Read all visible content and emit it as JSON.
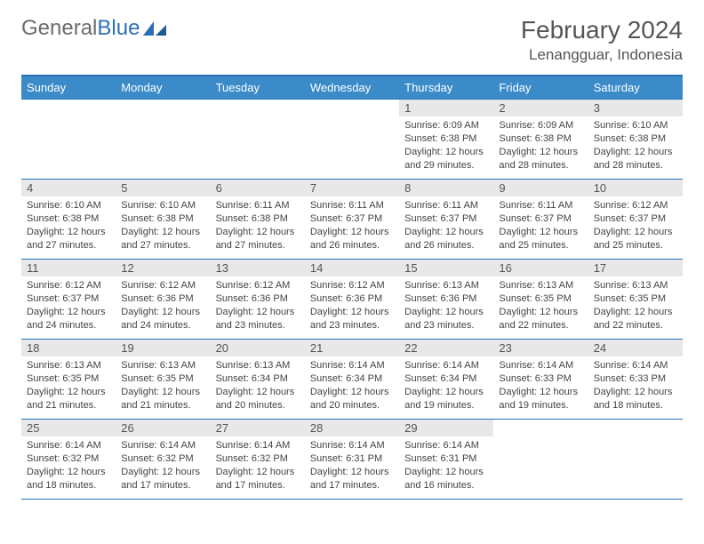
{
  "logo": {
    "text1": "General",
    "text2": "Blue"
  },
  "title": "February 2024",
  "location": "Lenangguar, Indonesia",
  "colors": {
    "header_bg": "#3b8bc9",
    "header_border": "#2a6fb5",
    "daynum_bg": "#e8e8e8",
    "text": "#444444",
    "logo_gray": "#6b6b6b",
    "logo_blue": "#2a6fb5"
  },
  "dayNames": [
    "Sunday",
    "Monday",
    "Tuesday",
    "Wednesday",
    "Thursday",
    "Friday",
    "Saturday"
  ],
  "weeks": [
    [
      null,
      null,
      null,
      null,
      {
        "n": "1",
        "sr": "6:09 AM",
        "ss": "6:38 PM",
        "dl": "12 hours and 29 minutes."
      },
      {
        "n": "2",
        "sr": "6:09 AM",
        "ss": "6:38 PM",
        "dl": "12 hours and 28 minutes."
      },
      {
        "n": "3",
        "sr": "6:10 AM",
        "ss": "6:38 PM",
        "dl": "12 hours and 28 minutes."
      }
    ],
    [
      {
        "n": "4",
        "sr": "6:10 AM",
        "ss": "6:38 PM",
        "dl": "12 hours and 27 minutes."
      },
      {
        "n": "5",
        "sr": "6:10 AM",
        "ss": "6:38 PM",
        "dl": "12 hours and 27 minutes."
      },
      {
        "n": "6",
        "sr": "6:11 AM",
        "ss": "6:38 PM",
        "dl": "12 hours and 27 minutes."
      },
      {
        "n": "7",
        "sr": "6:11 AM",
        "ss": "6:37 PM",
        "dl": "12 hours and 26 minutes."
      },
      {
        "n": "8",
        "sr": "6:11 AM",
        "ss": "6:37 PM",
        "dl": "12 hours and 26 minutes."
      },
      {
        "n": "9",
        "sr": "6:11 AM",
        "ss": "6:37 PM",
        "dl": "12 hours and 25 minutes."
      },
      {
        "n": "10",
        "sr": "6:12 AM",
        "ss": "6:37 PM",
        "dl": "12 hours and 25 minutes."
      }
    ],
    [
      {
        "n": "11",
        "sr": "6:12 AM",
        "ss": "6:37 PM",
        "dl": "12 hours and 24 minutes."
      },
      {
        "n": "12",
        "sr": "6:12 AM",
        "ss": "6:36 PM",
        "dl": "12 hours and 24 minutes."
      },
      {
        "n": "13",
        "sr": "6:12 AM",
        "ss": "6:36 PM",
        "dl": "12 hours and 23 minutes."
      },
      {
        "n": "14",
        "sr": "6:12 AM",
        "ss": "6:36 PM",
        "dl": "12 hours and 23 minutes."
      },
      {
        "n": "15",
        "sr": "6:13 AM",
        "ss": "6:36 PM",
        "dl": "12 hours and 23 minutes."
      },
      {
        "n": "16",
        "sr": "6:13 AM",
        "ss": "6:35 PM",
        "dl": "12 hours and 22 minutes."
      },
      {
        "n": "17",
        "sr": "6:13 AM",
        "ss": "6:35 PM",
        "dl": "12 hours and 22 minutes."
      }
    ],
    [
      {
        "n": "18",
        "sr": "6:13 AM",
        "ss": "6:35 PM",
        "dl": "12 hours and 21 minutes."
      },
      {
        "n": "19",
        "sr": "6:13 AM",
        "ss": "6:35 PM",
        "dl": "12 hours and 21 minutes."
      },
      {
        "n": "20",
        "sr": "6:13 AM",
        "ss": "6:34 PM",
        "dl": "12 hours and 20 minutes."
      },
      {
        "n": "21",
        "sr": "6:14 AM",
        "ss": "6:34 PM",
        "dl": "12 hours and 20 minutes."
      },
      {
        "n": "22",
        "sr": "6:14 AM",
        "ss": "6:34 PM",
        "dl": "12 hours and 19 minutes."
      },
      {
        "n": "23",
        "sr": "6:14 AM",
        "ss": "6:33 PM",
        "dl": "12 hours and 19 minutes."
      },
      {
        "n": "24",
        "sr": "6:14 AM",
        "ss": "6:33 PM",
        "dl": "12 hours and 18 minutes."
      }
    ],
    [
      {
        "n": "25",
        "sr": "6:14 AM",
        "ss": "6:32 PM",
        "dl": "12 hours and 18 minutes."
      },
      {
        "n": "26",
        "sr": "6:14 AM",
        "ss": "6:32 PM",
        "dl": "12 hours and 17 minutes."
      },
      {
        "n": "27",
        "sr": "6:14 AM",
        "ss": "6:32 PM",
        "dl": "12 hours and 17 minutes."
      },
      {
        "n": "28",
        "sr": "6:14 AM",
        "ss": "6:31 PM",
        "dl": "12 hours and 17 minutes."
      },
      {
        "n": "29",
        "sr": "6:14 AM",
        "ss": "6:31 PM",
        "dl": "12 hours and 16 minutes."
      },
      null,
      null
    ]
  ],
  "labels": {
    "sunrise": "Sunrise:",
    "sunset": "Sunset:",
    "daylight": "Daylight:"
  }
}
